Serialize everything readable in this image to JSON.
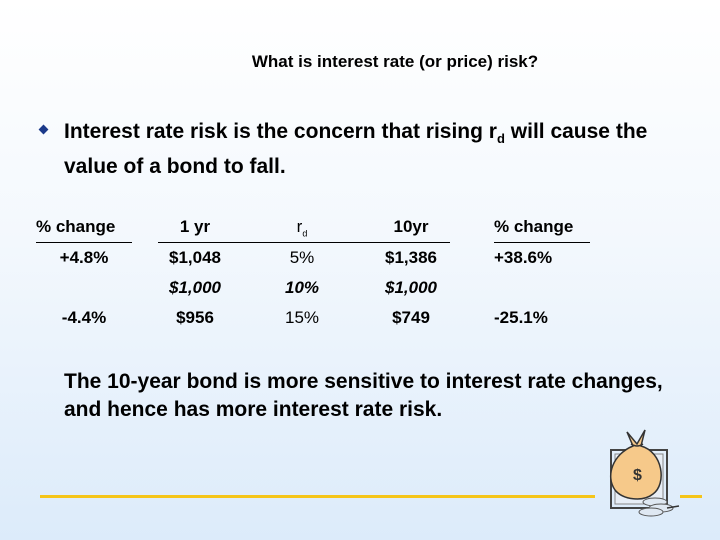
{
  "title": "What is interest rate (or price) risk?",
  "bullet": {
    "text_before": "Interest rate risk is the concern that rising r",
    "subscript": "d",
    "text_after": " will cause the value of a bond to fall."
  },
  "table": {
    "col1": {
      "header": "% change",
      "rows": [
        "+4.8%",
        "",
        "-4.4%"
      ]
    },
    "col2": {
      "header": "1 yr",
      "rows": [
        "$1,048",
        "$1,000",
        "$956"
      ]
    },
    "col3": {
      "header": "r",
      "header_sub": "d",
      "rows": [
        "5%",
        "10%",
        "15%"
      ]
    },
    "col4": {
      "header": "10yr",
      "rows": [
        "$1,386",
        "$1,000",
        "$749"
      ]
    },
    "col5": {
      "header": "% change",
      "rows": [
        "+38.6%",
        "",
        "-25.1%"
      ]
    }
  },
  "conclusion": "The 10-year bond is more sensitive to interest rate changes, and hence has more interest rate risk.",
  "colors": {
    "accent_line": "#f5c518",
    "bullet": "#1b3a8a"
  },
  "icons": {
    "decor": "money-bag-icon"
  }
}
